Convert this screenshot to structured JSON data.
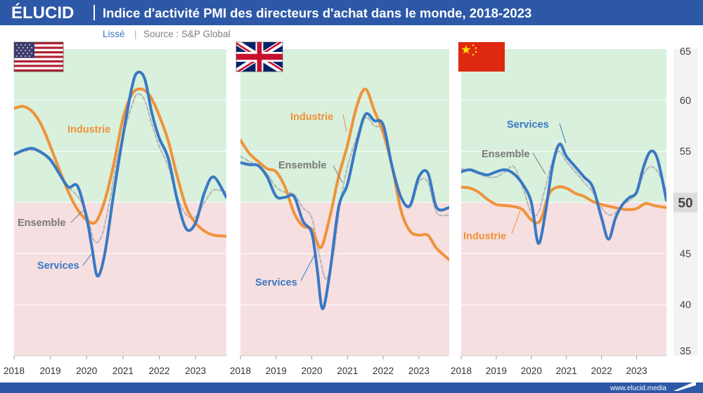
{
  "header": {
    "logo": "ÉLUCID",
    "title": "Indice d'activité PMI des directeurs d'achat dans le monde, 2018-2023",
    "subtitle_mode": "Lissé",
    "subtitle_source": "Source : S&P Global"
  },
  "footer": {
    "url": "www.elucid.media"
  },
  "colors": {
    "header_bg": "#2d58a7",
    "services": "#3a78c3",
    "industrie": "#f0923a",
    "ensemble": "#b4b4b4",
    "expansion_zone": "#d8f0dc",
    "contraction_zone": "#f6dfe0"
  },
  "chart_data": {
    "type": "line",
    "ylim": [
      35,
      65
    ],
    "y_ticks": [
      "35",
      "40",
      "45",
      "50",
      "55",
      "60",
      "65"
    ],
    "threshold": 50,
    "threshold_label": "50",
    "x_ticks": [
      "2018",
      "2019",
      "2020",
      "2021",
      "2022",
      "2023"
    ],
    "xlim": [
      2018,
      2023.85
    ],
    "panels": [
      {
        "country": "États-Unis",
        "flag": "us-flag",
        "labels": {
          "industrie": "Industrie",
          "ensemble": "Ensemble",
          "services": "Services"
        },
        "series": [
          {
            "name": "Services",
            "key": "services",
            "x": [
              2018.0,
              2018.25,
              2018.5,
              2018.75,
              2019.0,
              2019.25,
              2019.5,
              2019.75,
              2020.0,
              2020.15,
              2020.3,
              2020.5,
              2020.75,
              2021.0,
              2021.25,
              2021.4,
              2021.6,
              2021.8,
              2022.0,
              2022.25,
              2022.5,
              2022.75,
              2023.0,
              2023.25,
              2023.5,
              2023.85
            ],
            "y": [
              54.7,
              55.1,
              55.3,
              54.9,
              54.2,
              52.8,
              51.5,
              51.6,
              48.5,
              45.5,
              42.8,
              45.0,
              51.0,
              56.5,
              61.3,
              62.7,
              62.1,
              58.7,
              56.3,
              54.3,
              50.2,
              47.4,
              48.0,
              51.0,
              52.5,
              50.5
            ]
          },
          {
            "name": "Industrie",
            "key": "industrie",
            "x": [
              2018.0,
              2018.25,
              2018.5,
              2018.75,
              2019.0,
              2019.25,
              2019.5,
              2019.75,
              2020.0,
              2020.25,
              2020.5,
              2020.75,
              2021.0,
              2021.25,
              2021.5,
              2021.75,
              2022.0,
              2022.25,
              2022.5,
              2022.75,
              2023.0,
              2023.25,
              2023.5,
              2023.85
            ],
            "y": [
              59.2,
              59.4,
              58.9,
              57.6,
              55.5,
              53.2,
              51.0,
              49.3,
              48.3,
              48.1,
              50.2,
              53.8,
              58.2,
              60.6,
              61.1,
              60.4,
              58.5,
              56.0,
              52.5,
              49.5,
              48.0,
              47.2,
              46.8,
              46.7
            ]
          },
          {
            "name": "Ensemble",
            "key": "ensemble",
            "x": [
              2018.0,
              2018.25,
              2018.5,
              2018.75,
              2019.0,
              2019.25,
              2019.5,
              2019.75,
              2020.0,
              2020.2,
              2020.4,
              2020.6,
              2020.8,
              2021.0,
              2021.25,
              2021.4,
              2021.6,
              2021.8,
              2022.0,
              2022.25,
              2022.5,
              2022.75,
              2023.0,
              2023.25,
              2023.5,
              2023.85
            ],
            "y": [
              54.8,
              55.0,
              55.1,
              54.8,
              54.0,
              52.8,
              51.5,
              50.6,
              49.0,
              46.3,
              46.6,
              49.5,
              53.5,
              56.5,
              59.5,
              60.6,
              60.0,
              57.6,
              55.5,
              53.5,
              50.5,
              48.8,
              48.6,
              50.0,
              51.2,
              51.0
            ]
          }
        ]
      },
      {
        "country": "Royaume-Uni",
        "flag": "uk-flag",
        "labels": {
          "industrie": "Industrie",
          "ensemble": "Ensemble",
          "services": "Services"
        },
        "series": [
          {
            "name": "Services",
            "key": "services",
            "x": [
              2018.0,
              2018.25,
              2018.5,
              2018.75,
              2019.0,
              2019.25,
              2019.5,
              2019.75,
              2020.0,
              2020.15,
              2020.3,
              2020.5,
              2020.75,
              2021.0,
              2021.25,
              2021.5,
              2021.75,
              2022.0,
              2022.25,
              2022.5,
              2022.75,
              2023.0,
              2023.25,
              2023.5,
              2023.85
            ],
            "y": [
              53.9,
              53.7,
              53.6,
              52.5,
              50.6,
              50.5,
              50.6,
              48.2,
              47.0,
              43.5,
              39.6,
              43.0,
              49.5,
              51.8,
              55.7,
              58.6,
              58.0,
              57.6,
              53.5,
              50.5,
              49.7,
              52.5,
              52.9,
              49.5,
              49.5
            ]
          },
          {
            "name": "Industrie",
            "key": "industrie",
            "x": [
              2018.0,
              2018.25,
              2018.5,
              2018.75,
              2019.0,
              2019.25,
              2019.5,
              2019.75,
              2020.0,
              2020.25,
              2020.5,
              2020.75,
              2021.0,
              2021.25,
              2021.5,
              2021.75,
              2022.0,
              2022.25,
              2022.5,
              2022.75,
              2023.0,
              2023.25,
              2023.5,
              2023.85
            ],
            "y": [
              56.1,
              54.8,
              54.0,
              53.3,
              53.0,
              51.5,
              49.0,
              47.7,
              47.4,
              45.6,
              48.5,
              52.5,
              55.6,
              59.3,
              61.1,
              59.0,
              56.8,
              53.5,
              49.2,
              47.2,
              46.8,
              46.8,
              45.5,
              44.4
            ]
          },
          {
            "name": "Ensemble",
            "key": "ensemble",
            "x": [
              2018.0,
              2018.25,
              2018.5,
              2018.75,
              2019.0,
              2019.25,
              2019.5,
              2019.75,
              2020.0,
              2020.2,
              2020.4,
              2020.6,
              2020.8,
              2021.0,
              2021.25,
              2021.5,
              2021.75,
              2022.0,
              2022.25,
              2022.5,
              2022.75,
              2023.0,
              2023.25,
              2023.5,
              2023.85
            ],
            "y": [
              54.5,
              54.0,
              53.5,
              52.8,
              51.5,
              51.0,
              50.8,
              49.5,
              48.5,
              45.0,
              42.5,
              44.8,
              50.0,
              53.5,
              56.3,
              58.3,
              57.5,
              57.0,
              53.5,
              50.5,
              49.5,
              52.0,
              52.0,
              49.0,
              48.8
            ]
          }
        ]
      },
      {
        "country": "Chine",
        "flag": "china-flag",
        "labels": {
          "industrie": "Industrie",
          "ensemble": "Ensemble",
          "services": "Services"
        },
        "series": [
          {
            "name": "Services",
            "key": "services",
            "x": [
              2018.0,
              2018.25,
              2018.5,
              2018.75,
              2019.0,
              2019.25,
              2019.5,
              2019.75,
              2020.0,
              2020.2,
              2020.4,
              2020.6,
              2020.8,
              2021.0,
              2021.25,
              2021.5,
              2021.75,
              2022.0,
              2022.2,
              2022.4,
              2022.6,
              2022.8,
              2023.0,
              2023.2,
              2023.4,
              2023.6,
              2023.85
            ],
            "y": [
              53.0,
              53.2,
              52.9,
              52.7,
              53.0,
              53.2,
              52.8,
              51.8,
              50.0,
              46.0,
              49.0,
              53.5,
              55.7,
              54.5,
              53.5,
              52.5,
              51.5,
              48.5,
              46.4,
              48.5,
              49.8,
              50.5,
              51.0,
              53.5,
              55.0,
              54.2,
              50.2
            ]
          },
          {
            "name": "Industrie",
            "key": "industrie",
            "x": [
              2018.0,
              2018.25,
              2018.5,
              2018.75,
              2019.0,
              2019.25,
              2019.5,
              2019.75,
              2020.0,
              2020.25,
              2020.5,
              2020.75,
              2021.0,
              2021.25,
              2021.5,
              2021.75,
              2022.0,
              2022.25,
              2022.5,
              2022.75,
              2023.0,
              2023.25,
              2023.5,
              2023.85
            ],
            "y": [
              51.5,
              51.4,
              51.0,
              50.3,
              49.8,
              49.7,
              49.6,
              49.3,
              48.3,
              48.2,
              50.8,
              51.5,
              51.4,
              50.9,
              50.6,
              50.1,
              49.8,
              49.6,
              49.4,
              49.3,
              49.4,
              49.9,
              49.7,
              49.5
            ]
          },
          {
            "name": "Ensemble",
            "key": "ensemble",
            "x": [
              2018.0,
              2018.25,
              2018.5,
              2018.75,
              2019.0,
              2019.25,
              2019.5,
              2019.75,
              2020.0,
              2020.2,
              2020.4,
              2020.6,
              2020.8,
              2021.0,
              2021.25,
              2021.5,
              2021.75,
              2022.0,
              2022.2,
              2022.4,
              2022.6,
              2022.8,
              2023.0,
              2023.2,
              2023.4,
              2023.6,
              2023.85
            ],
            "y": [
              53.3,
              53.1,
              52.8,
              52.5,
              52.5,
              53.0,
              53.5,
              51.5,
              49.0,
              49.0,
              51.5,
              54.0,
              55.0,
              54.0,
              53.0,
              52.0,
              51.0,
              49.5,
              48.8,
              49.0,
              49.8,
              50.2,
              51.0,
              52.8,
              53.5,
              53.0,
              51.2
            ]
          }
        ]
      }
    ]
  }
}
